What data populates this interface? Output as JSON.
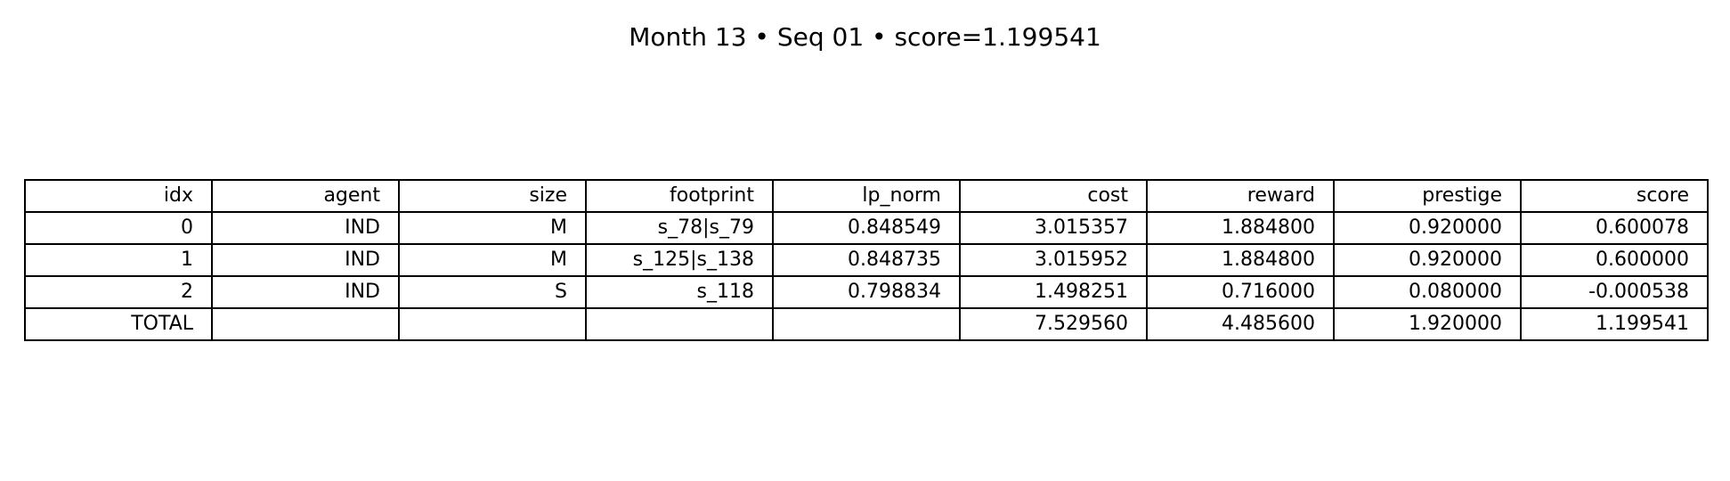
{
  "chart_data": {
    "type": "table",
    "title": "Month 13 • Seq 01 • score=1.199541",
    "columns": [
      "idx",
      "agent",
      "size",
      "footprint",
      "lp_norm",
      "cost",
      "reward",
      "prestige",
      "score"
    ],
    "rows": [
      [
        "0",
        "IND",
        "M",
        "s_78|s_79",
        "0.848549",
        "3.015357",
        "1.884800",
        "0.920000",
        "0.600078"
      ],
      [
        "1",
        "IND",
        "M",
        "s_125|s_138",
        "0.848735",
        "3.015952",
        "1.884800",
        "0.920000",
        "0.600000"
      ],
      [
        "2",
        "IND",
        "S",
        "s_118",
        "0.798834",
        "1.498251",
        "0.716000",
        "0.080000",
        "-0.000538"
      ],
      [
        "TOTAL",
        "",
        "",
        "",
        "",
        "7.529560",
        "4.485600",
        "1.920000",
        "1.199541"
      ]
    ]
  }
}
